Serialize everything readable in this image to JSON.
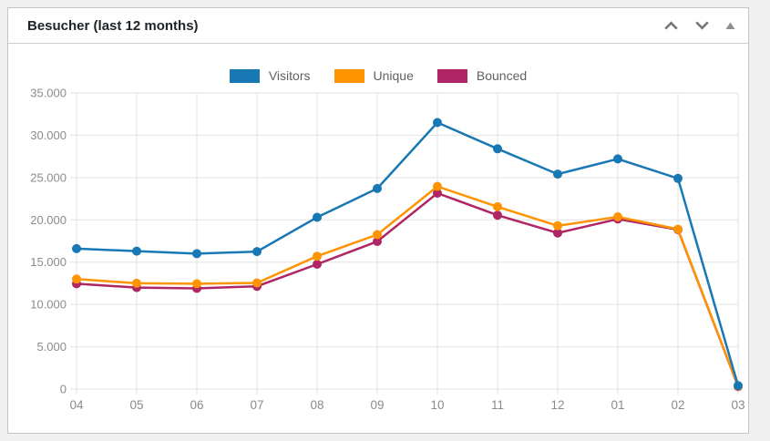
{
  "widget": {
    "title": "Besucher (last 12 months)",
    "controls": {
      "move_up": "chevron-up",
      "move_down": "chevron-down",
      "collapse": "triangle-up"
    }
  },
  "colors": {
    "page_background": "#f0f0f1",
    "card_background": "#ffffff",
    "card_border": "#c3c4c7",
    "header_separator": "#cfcfcf",
    "grid": "#e2e2e2",
    "axis_label": "#8b8b8b",
    "title_text": "#1d2327",
    "legend_text": "#616161",
    "icon_chevron": "#72777c",
    "icon_triangle": "#8c8f94"
  },
  "chart_data": {
    "type": "line",
    "title": "Besucher (last 12 months)",
    "categories": [
      "04",
      "05",
      "06",
      "07",
      "08",
      "09",
      "10",
      "11",
      "12",
      "01",
      "02",
      "03"
    ],
    "series": [
      {
        "name": "Visitors",
        "color": "#1878b4",
        "values": [
          16600,
          16300,
          16000,
          16250,
          20300,
          23700,
          31500,
          28400,
          25400,
          27200,
          24900,
          400
        ]
      },
      {
        "name": "Unique",
        "color": "#fe9401",
        "values": [
          13000,
          12500,
          12450,
          12550,
          15700,
          18250,
          23950,
          21550,
          19300,
          20350,
          18900,
          350
        ]
      },
      {
        "name": "Bounced",
        "color": "#b02565",
        "values": [
          12450,
          12000,
          11900,
          12150,
          14750,
          17450,
          23150,
          20550,
          18450,
          20100,
          18850,
          300
        ]
      }
    ],
    "xlabel": "",
    "ylabel": "",
    "ylim": [
      0,
      35000
    ],
    "ytick_values": [
      0,
      5000,
      10000,
      15000,
      20000,
      25000,
      30000,
      35000
    ],
    "ytick_labels": [
      "0",
      "5.000",
      "10.000",
      "15.000",
      "20.000",
      "25.000",
      "30.000",
      "35.000"
    ],
    "grid": true,
    "legend_position": "top-center",
    "marker": "circle",
    "marker_radius": 5,
    "line_width": 2.5
  }
}
